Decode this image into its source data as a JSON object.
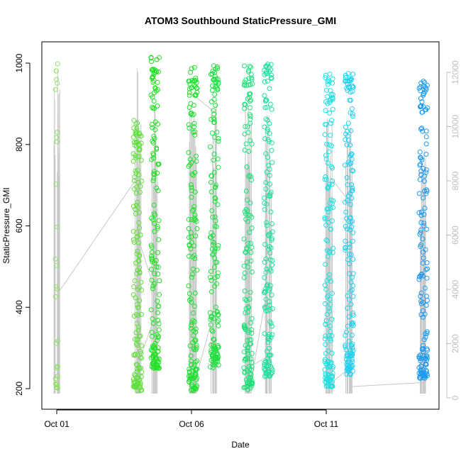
{
  "chart_data": {
    "type": "scatter",
    "title": "ATOM3 Southbound StaticPressure_GMI",
    "xlabel": "Date",
    "ylabel": "StaticPressure_GMI",
    "x_axis": {
      "ticks": [
        {
          "day": 1,
          "label": "Oct 01"
        },
        {
          "day": 6,
          "label": "Oct 06"
        },
        {
          "day": 11,
          "label": "Oct 11"
        }
      ],
      "range_days": [
        0.5,
        15.4
      ]
    },
    "y_axis_left": {
      "range": [
        175,
        1040
      ],
      "ticks": [
        200,
        400,
        600,
        800,
        1000
      ]
    },
    "y_axis_right": {
      "note_color": "#bdbdbd",
      "range": [
        -200,
        12300
      ],
      "ticks": [
        0,
        2000,
        4000,
        6000,
        8000,
        10000,
        12000
      ]
    },
    "grid": false,
    "point_color_range": [
      "#7fe07f",
      "#00a0ff"
    ],
    "altitude_line_color": "#c8c8c8",
    "clusters": [
      {
        "day": 1.0,
        "y_min": 195,
        "y_max": 1000,
        "alt_max": 12000,
        "color": "#8fe06a"
      },
      {
        "day": 4.0,
        "y_min": 195,
        "y_max": 860,
        "alt_max": 12800,
        "color": "#5fe03a"
      },
      {
        "day": 4.65,
        "y_min": 250,
        "y_max": 1018,
        "alt_max": 11000,
        "color": "#22e022"
      },
      {
        "day": 6.05,
        "y_min": 195,
        "y_max": 990,
        "alt_max": 11000,
        "color": "#1ee030"
      },
      {
        "day": 6.85,
        "y_min": 250,
        "y_max": 995,
        "alt_max": 11000,
        "color": "#1ee040"
      },
      {
        "day": 8.1,
        "y_min": 195,
        "y_max": 1005,
        "alt_max": 11500,
        "color": "#1ee07a"
      },
      {
        "day": 8.85,
        "y_min": 230,
        "y_max": 1000,
        "alt_max": 10500,
        "color": "#1ee0a0"
      },
      {
        "day": 11.1,
        "y_min": 205,
        "y_max": 975,
        "alt_max": 10500,
        "color": "#1ee0e0"
      },
      {
        "day": 11.85,
        "y_min": 235,
        "y_max": 975,
        "alt_max": 10000,
        "color": "#1ed0f0"
      },
      {
        "day": 14.6,
        "y_min": 225,
        "y_max": 960,
        "alt_max": 9500,
        "color": "#1a9af0"
      }
    ],
    "transit_lines": [
      [
        1.05,
        435,
        4.0,
        720
      ],
      [
        4.0,
        575,
        4.65,
        440
      ],
      [
        4.05,
        265,
        4.65,
        380
      ],
      [
        6.05,
        200,
        6.85,
        390
      ],
      [
        6.1,
        920,
        6.85,
        880
      ],
      [
        8.15,
        195,
        8.85,
        460
      ],
      [
        8.2,
        255,
        8.85,
        280
      ],
      [
        11.15,
        720,
        11.85,
        660
      ],
      [
        11.2,
        215,
        11.85,
        250
      ],
      [
        11.9,
        205,
        14.6,
        215
      ]
    ]
  }
}
